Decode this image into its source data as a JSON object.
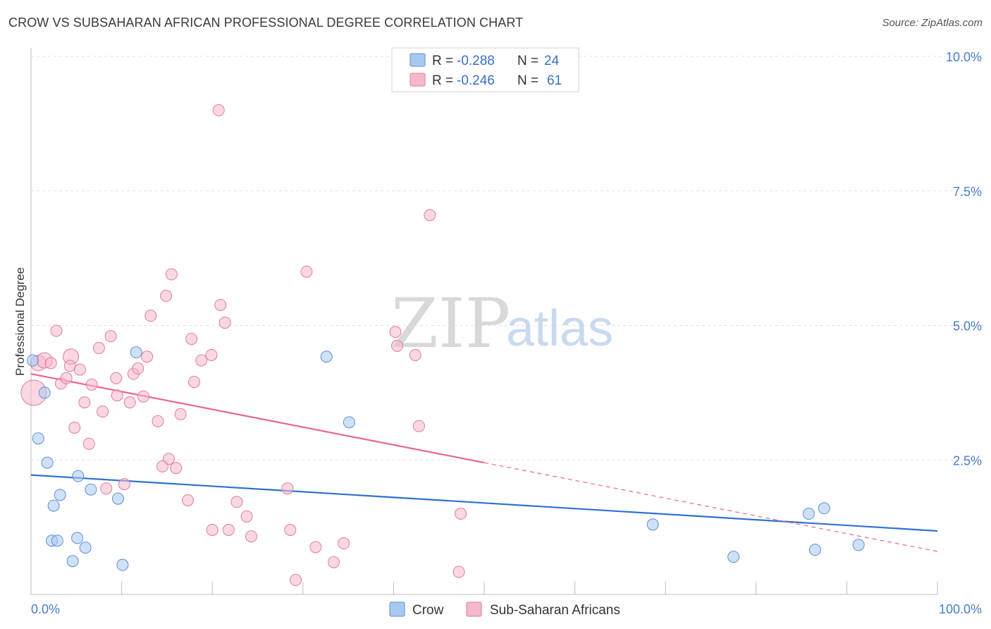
{
  "title": "CROW VS SUBSAHARAN AFRICAN PROFESSIONAL DEGREE CORRELATION CHART",
  "source": "Source: ZipAtlas.com",
  "watermark": {
    "zip": "ZIP",
    "atlas": "atlas"
  },
  "legend": {
    "rows": [
      {
        "r_label": "R =",
        "r_value": "-0.288",
        "n_label": "N =",
        "n_value": "24",
        "color": "#a9c8f0"
      },
      {
        "r_label": "R =",
        "r_value": "-0.246",
        "n_label": "N =",
        "n_value": "61",
        "color": "#f5b8cb"
      }
    ]
  },
  "bottom_legend": [
    {
      "label": "Crow",
      "color": "#a9c8f0"
    },
    {
      "label": "Sub-Saharan Africans",
      "color": "#f5b8cb"
    }
  ],
  "chart_data": {
    "type": "scatter",
    "title": "CROW VS SUBSAHARAN AFRICAN PROFESSIONAL DEGREE CORRELATION CHART",
    "xlabel": "",
    "ylabel": "Professional Degree",
    "xlim": [
      0,
      100
    ],
    "ylim": [
      0,
      10
    ],
    "x_tick_labels": [
      "0.0%",
      "100.0%"
    ],
    "y_ticks": [
      2.5,
      5.0,
      7.5,
      10.0
    ],
    "y_tick_labels": [
      "2.5%",
      "5.0%",
      "7.5%",
      "10.0%"
    ],
    "grid": true,
    "legend_position": "top-center",
    "series": [
      {
        "name": "Crow",
        "color": "#a9c8f0",
        "stroke": "#5b8fd6",
        "trend_color": "#2f72cf",
        "trend": {
          "x0": 0,
          "y0": 2.22,
          "x1": 100,
          "y1": 1.18,
          "solid_until": 100
        },
        "points": [
          [
            0.2,
            4.35
          ],
          [
            1.5,
            3.75
          ],
          [
            0.8,
            2.9
          ],
          [
            1.8,
            2.45
          ],
          [
            5.2,
            2.2
          ],
          [
            3.2,
            1.85
          ],
          [
            6.6,
            1.95
          ],
          [
            9.6,
            1.78
          ],
          [
            2.5,
            1.65
          ],
          [
            2.3,
            1.0
          ],
          [
            2.9,
            1.0
          ],
          [
            5.1,
            1.05
          ],
          [
            6.0,
            0.87
          ],
          [
            4.6,
            0.62
          ],
          [
            10.1,
            0.55
          ],
          [
            11.6,
            4.5
          ],
          [
            32.6,
            4.42
          ],
          [
            35.1,
            3.2
          ],
          [
            68.6,
            1.3
          ],
          [
            77.5,
            0.7
          ],
          [
            85.8,
            1.5
          ],
          [
            87.5,
            1.6
          ],
          [
            86.5,
            0.83
          ],
          [
            91.3,
            0.92
          ]
        ]
      },
      {
        "name": "Sub-Saharan Africans",
        "color": "#f5b8cb",
        "stroke": "#e07aa0",
        "trend_color": "#e8678f",
        "trend": {
          "x0": 0,
          "y0": 4.1,
          "x1": 100,
          "y1": 0.8,
          "solid_until": 50
        },
        "points": [
          [
            0.3,
            3.75
          ],
          [
            0.8,
            4.3
          ],
          [
            1.5,
            4.35
          ],
          [
            2.2,
            4.3
          ],
          [
            4.4,
            4.42
          ],
          [
            2.8,
            4.9
          ],
          [
            4.3,
            4.25
          ],
          [
            5.4,
            4.18
          ],
          [
            3.3,
            3.92
          ],
          [
            3.9,
            4.02
          ],
          [
            6.7,
            3.9
          ],
          [
            9.4,
            4.02
          ],
          [
            11.3,
            4.1
          ],
          [
            11.8,
            4.2
          ],
          [
            12.8,
            4.42
          ],
          [
            7.5,
            4.58
          ],
          [
            8.8,
            4.8
          ],
          [
            9.5,
            3.7
          ],
          [
            12.4,
            3.68
          ],
          [
            10.9,
            3.57
          ],
          [
            5.9,
            3.57
          ],
          [
            7.9,
            3.4
          ],
          [
            4.8,
            3.1
          ],
          [
            6.4,
            2.8
          ],
          [
            14.0,
            3.22
          ],
          [
            16.5,
            3.35
          ],
          [
            15.2,
            2.52
          ],
          [
            14.5,
            2.38
          ],
          [
            16.0,
            2.35
          ],
          [
            8.3,
            1.97
          ],
          [
            10.3,
            2.05
          ],
          [
            17.3,
            1.75
          ],
          [
            15.5,
            5.95
          ],
          [
            14.9,
            5.55
          ],
          [
            13.2,
            5.18
          ],
          [
            17.7,
            4.75
          ],
          [
            18.8,
            4.35
          ],
          [
            18.0,
            3.95
          ],
          [
            19.9,
            4.45
          ],
          [
            20.7,
            9.0
          ],
          [
            20.9,
            5.38
          ],
          [
            21.4,
            5.05
          ],
          [
            20.0,
            1.2
          ],
          [
            21.8,
            1.2
          ],
          [
            22.7,
            1.72
          ],
          [
            23.8,
            1.45
          ],
          [
            24.3,
            1.08
          ],
          [
            28.3,
            1.97
          ],
          [
            30.4,
            6.0
          ],
          [
            28.6,
            1.2
          ],
          [
            31.4,
            0.88
          ],
          [
            34.5,
            0.95
          ],
          [
            33.4,
            0.6
          ],
          [
            29.2,
            0.27
          ],
          [
            40.2,
            4.88
          ],
          [
            40.4,
            4.62
          ],
          [
            42.4,
            4.45
          ],
          [
            42.8,
            3.13
          ],
          [
            44.0,
            7.05
          ],
          [
            47.4,
            1.5
          ],
          [
            47.2,
            0.42
          ]
        ]
      }
    ]
  }
}
